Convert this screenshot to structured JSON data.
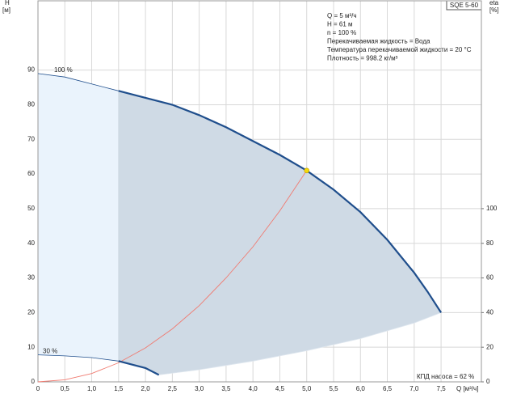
{
  "chart_data": {
    "type": "line",
    "y_label": "H",
    "y_unit": "[м]",
    "y2_label": "eta",
    "y2_unit": "[%]",
    "x_label": "Q [м³/ч]",
    "badge": "SQE 5-60",
    "info": [
      "Q = 5 м³/ч",
      "H = 61 м",
      "n = 100 %",
      "Перекачиваемая жидкость = Вода",
      "Температура перекачиваемой жидкости = 20 °C",
      "Плотность = 998.2 кг/м³"
    ],
    "efficiency_note": "КПД насоса = 62 %",
    "xlim": [
      0,
      8.25
    ],
    "ylim": [
      0,
      110
    ],
    "y2lim": [
      0,
      220
    ],
    "xticks": [
      0,
      {
        "value": 0.5,
        "label": "0,5"
      },
      {
        "value": 1.0,
        "label": "1,0"
      },
      {
        "value": 1.5,
        "label": "1,5"
      },
      {
        "value": 2.0,
        "label": "2,0"
      },
      {
        "value": 2.5,
        "label": "2,5"
      },
      {
        "value": 3.0,
        "label": "3,0"
      },
      {
        "value": 3.5,
        "label": "3,5"
      },
      {
        "value": 4.0,
        "label": "4,0"
      },
      {
        "value": 4.5,
        "label": "4,5"
      },
      {
        "value": 5.0,
        "label": "5,0"
      },
      {
        "value": 5.5,
        "label": "5,5"
      },
      {
        "value": 6.0,
        "label": "6,0"
      },
      {
        "value": 6.5,
        "label": "6,5"
      },
      {
        "value": 7.0,
        "label": "7,0"
      },
      {
        "value": 7.5,
        "label": "7,5"
      }
    ],
    "yticks": [
      0,
      10,
      20,
      30,
      40,
      50,
      60,
      70,
      80,
      90
    ],
    "y2ticks": [
      0,
      20,
      40,
      60,
      80,
      100
    ],
    "grid": true,
    "duty_range": [
      1.5,
      7.5
    ],
    "curves": [
      {
        "label": "100 %",
        "color": "#1f4e8c",
        "x": [
          0,
          0.5,
          1.0,
          1.5,
          2.0,
          2.5,
          3.0,
          3.5,
          4.0,
          4.5,
          5.0,
          5.5,
          6.0,
          6.5,
          7.0,
          7.25,
          7.5
        ],
        "values": [
          89,
          88,
          86,
          84,
          82,
          80,
          77,
          73.5,
          69.5,
          65.5,
          61,
          55.5,
          49,
          41,
          31.5,
          26,
          20
        ]
      },
      {
        "label": "30 %",
        "color": "#1f4e8c",
        "x": [
          0,
          0.5,
          1.0,
          1.5,
          2.0,
          2.25
        ],
        "values": [
          7.8,
          7.5,
          7,
          6,
          4,
          2
        ]
      }
    ],
    "lower_boundary": {
      "x": [
        2.25,
        3.0,
        4.0,
        5.0,
        6.0,
        7.0,
        7.5
      ],
      "values": [
        2,
        3.5,
        6,
        9,
        12.5,
        17,
        20
      ]
    },
    "system_curve": {
      "color": "#f07a70",
      "x": [
        0,
        0.5,
        1.0,
        1.5,
        2.0,
        2.5,
        3.0,
        3.5,
        4.0,
        4.5,
        5.0
      ],
      "values": [
        0,
        0.6,
        2.4,
        5.5,
        9.8,
        15.3,
        22,
        30,
        39,
        49.4,
        61
      ]
    },
    "duty_point": {
      "x": 5,
      "y": 61,
      "color": "#f5d90a"
    }
  }
}
